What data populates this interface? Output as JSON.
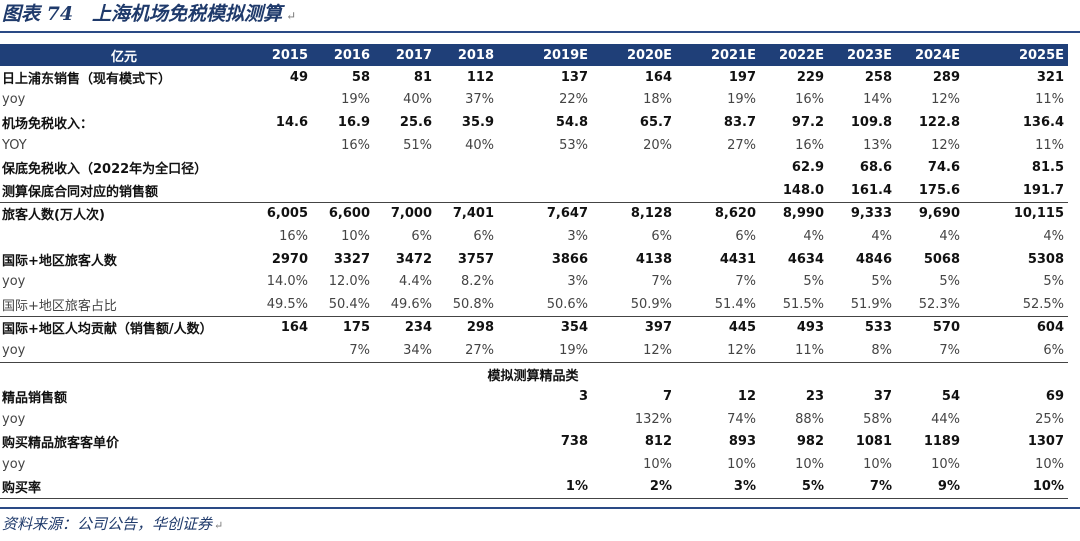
{
  "title": "图表 74　上海机场免税模拟测算",
  "title_mark": "↵",
  "header": [
    "亿元",
    "2015",
    "2016",
    "2017",
    "2018",
    "2019E",
    "2020E",
    "2021E",
    "2022E",
    "2023E",
    "2024E",
    "2025E"
  ],
  "rows": [
    {
      "style": "bold",
      "cells": [
        "日上浦东销售（现有模式下）",
        "49",
        "58",
        "81",
        "112",
        "137",
        "164",
        "197",
        "229",
        "258",
        "289",
        "321"
      ]
    },
    {
      "style": "light",
      "cells": [
        "yoy",
        "",
        "19%",
        "40%",
        "37%",
        "22%",
        "18%",
        "19%",
        "16%",
        "14%",
        "12%",
        "11%"
      ]
    },
    {
      "style": "bold",
      "cells": [
        "机场免税收入：",
        "14.6",
        "16.9",
        "25.6",
        "35.9",
        "54.8",
        "65.7",
        "83.7",
        "97.2",
        "109.8",
        "122.8",
        "136.4"
      ]
    },
    {
      "style": "light",
      "cells": [
        "YOY",
        "",
        "16%",
        "51%",
        "40%",
        "53%",
        "20%",
        "27%",
        "16%",
        "13%",
        "12%",
        "11%"
      ]
    },
    {
      "style": "bold",
      "cells": [
        "保底免税收入（2022年为全口径）",
        "",
        "",
        "",
        "",
        "",
        "",
        "",
        "62.9",
        "68.6",
        "74.6",
        "81.5"
      ]
    },
    {
      "style": "bold",
      "cells": [
        "测算保底合同对应的销售额",
        "",
        "",
        "",
        "",
        "",
        "",
        "",
        "148.0",
        "161.4",
        "175.6",
        "191.7"
      ]
    },
    {
      "style": "bold topline",
      "cells": [
        "旅客人数(万人次)",
        "6,005",
        "6,600",
        "7,000",
        "7,401",
        "7,647",
        "8,128",
        "8,620",
        "8,990",
        "9,333",
        "9,690",
        "10,115"
      ]
    },
    {
      "style": "light",
      "cells": [
        "",
        "16%",
        "10%",
        "6%",
        "6%",
        "3%",
        "6%",
        "6%",
        "4%",
        "4%",
        "4%",
        "4%"
      ]
    },
    {
      "style": "bold",
      "cells": [
        "国际+地区旅客人数",
        "2970",
        "3327",
        "3472",
        "3757",
        "3866",
        "4138",
        "4431",
        "4634",
        "4846",
        "5068",
        "5308"
      ]
    },
    {
      "style": "light",
      "cells": [
        "yoy",
        "14.0%",
        "12.0%",
        "4.4%",
        "8.2%",
        "3%",
        "7%",
        "7%",
        "5%",
        "5%",
        "5%",
        "5%"
      ]
    },
    {
      "style": "light",
      "cells": [
        "国际+地区旅客占比",
        "49.5%",
        "50.4%",
        "49.6%",
        "50.8%",
        "50.6%",
        "50.9%",
        "51.4%",
        "51.5%",
        "51.9%",
        "52.3%",
        "52.5%"
      ]
    },
    {
      "style": "bold topline",
      "cells": [
        "国际+地区人均贡献（销售额/人数）",
        "164",
        "175",
        "234",
        "298",
        "354",
        "397",
        "445",
        "493",
        "533",
        "570",
        "604"
      ]
    },
    {
      "style": "light",
      "cells": [
        "yoy",
        "",
        "7%",
        "34%",
        "27%",
        "19%",
        "12%",
        "12%",
        "11%",
        "8%",
        "7%",
        "6%"
      ]
    }
  ],
  "subheader": "模拟测算精品类",
  "rows2": [
    {
      "style": "bold",
      "cells": [
        "精品销售额",
        "",
        "",
        "",
        "",
        "3",
        "7",
        "12",
        "23",
        "37",
        "54",
        "69"
      ]
    },
    {
      "style": "light",
      "cells": [
        "yoy",
        "",
        "",
        "",
        "",
        "",
        "132%",
        "74%",
        "88%",
        "58%",
        "44%",
        "25%"
      ]
    },
    {
      "style": "bold",
      "cells": [
        "购买精品旅客客单价",
        "",
        "",
        "",
        "",
        "738",
        "812",
        "893",
        "982",
        "1081",
        "1189",
        "1307"
      ]
    },
    {
      "style": "light",
      "cells": [
        "yoy",
        "",
        "",
        "",
        "",
        "",
        "10%",
        "10%",
        "10%",
        "10%",
        "10%",
        "10%"
      ]
    },
    {
      "style": "bold lastrow",
      "cells": [
        "购买率",
        "",
        "",
        "",
        "",
        "1%",
        "2%",
        "3%",
        "5%",
        "7%",
        "9%",
        "10%"
      ]
    }
  ],
  "source": "资料来源：公司公告，华创证券",
  "source_mark": "↵",
  "colors": {
    "header_bg": "#1f3f78",
    "title": "#1f3a6b"
  }
}
